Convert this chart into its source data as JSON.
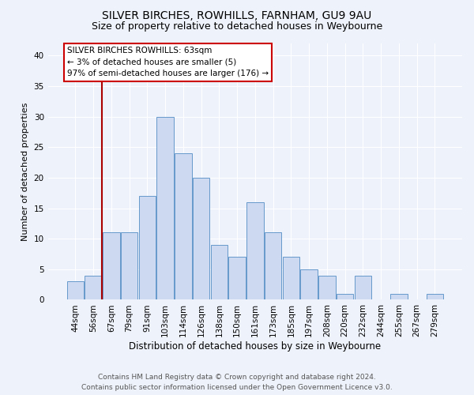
{
  "title1": "SILVER BIRCHES, ROWHILLS, FARNHAM, GU9 9AU",
  "title2": "Size of property relative to detached houses in Weybourne",
  "xlabel": "Distribution of detached houses by size in Weybourne",
  "ylabel": "Number of detached properties",
  "bar_labels": [
    "44sqm",
    "56sqm",
    "67sqm",
    "79sqm",
    "91sqm",
    "103sqm",
    "114sqm",
    "126sqm",
    "138sqm",
    "150sqm",
    "161sqm",
    "173sqm",
    "185sqm",
    "197sqm",
    "208sqm",
    "220sqm",
    "232sqm",
    "244sqm",
    "255sqm",
    "267sqm",
    "279sqm"
  ],
  "bar_values": [
    3,
    4,
    11,
    11,
    17,
    30,
    24,
    20,
    9,
    7,
    16,
    11,
    7,
    5,
    4,
    1,
    4,
    0,
    1,
    0,
    1
  ],
  "bar_color": "#ccd9f0",
  "bar_edge_color": "#6699cc",
  "vertical_line_x": 1.5,
  "annotation_line1": "SILVER BIRCHES ROWHILLS: 63sqm",
  "annotation_line2": "← 3% of detached houses are smaller (5)",
  "annotation_line3": "97% of semi-detached houses are larger (176) →",
  "annotation_box_color": "#ffffff",
  "annotation_box_edge": "#cc0000",
  "vertical_line_color": "#aa0000",
  "ylim": [
    0,
    42
  ],
  "yticks": [
    0,
    5,
    10,
    15,
    20,
    25,
    30,
    35,
    40
  ],
  "footer1": "Contains HM Land Registry data © Crown copyright and database right 2024.",
  "footer2": "Contains public sector information licensed under the Open Government Licence v3.0.",
  "background_color": "#eef2fa",
  "grid_color": "#ffffff",
  "title1_fontsize": 10,
  "title2_fontsize": 9,
  "tick_fontsize": 7.5,
  "ylabel_fontsize": 8,
  "xlabel_fontsize": 8.5,
  "annot_fontsize": 7.5,
  "footer_fontsize": 6.5
}
